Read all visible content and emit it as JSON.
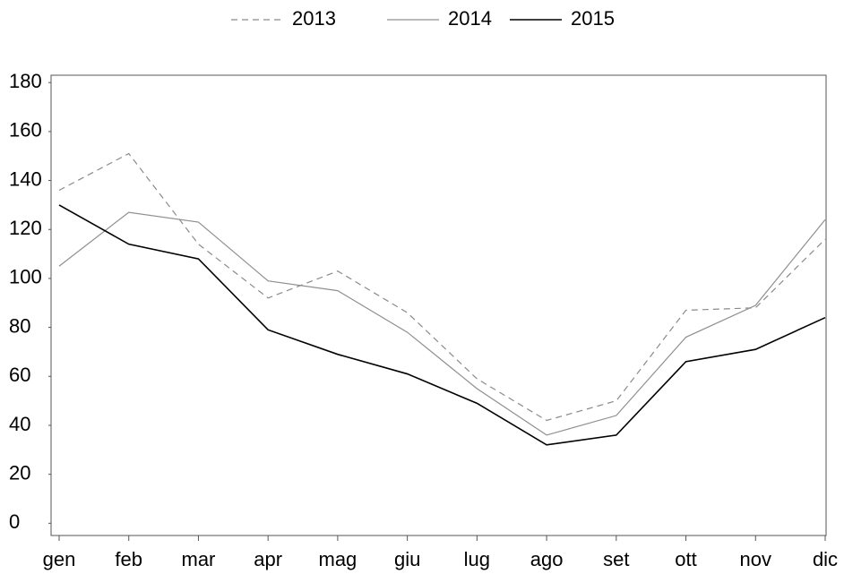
{
  "chart_data": {
    "type": "line",
    "categories": [
      "gen",
      "feb",
      "mar",
      "apr",
      "mag",
      "giu",
      "lug",
      "ago",
      "set",
      "ott",
      "nov",
      "dic"
    ],
    "series": [
      {
        "name": "2013",
        "color": "#8a8a8a",
        "style": "dashed",
        "values": [
          136,
          151,
          114,
          92,
          103,
          86,
          59,
          42,
          50,
          87,
          88,
          116
        ]
      },
      {
        "name": "2014",
        "color": "#8f8f8f",
        "style": "solid",
        "values": [
          105,
          127,
          123,
          99,
          95,
          78,
          55,
          36,
          44,
          76,
          89,
          124
        ]
      },
      {
        "name": "2015",
        "color": "#000000",
        "style": "solid",
        "values": [
          130,
          114,
          108,
          79,
          69,
          61,
          49,
          32,
          36,
          66,
          71,
          84
        ]
      }
    ],
    "ylim": [
      -5,
      183
    ],
    "yticks": [
      0,
      20,
      40,
      60,
      80,
      100,
      120,
      140,
      160,
      180
    ],
    "legend": "top"
  }
}
